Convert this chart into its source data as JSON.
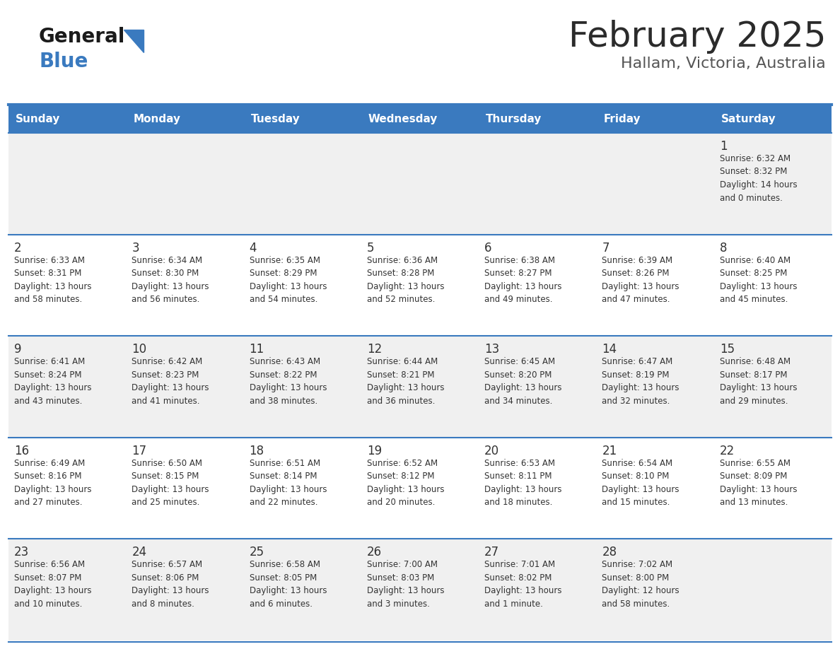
{
  "title": "February 2025",
  "subtitle": "Hallam, Victoria, Australia",
  "header_bg": "#3a7abf",
  "header_text": "#ffffff",
  "row_bg_odd": "#f0f0f0",
  "row_bg_even": "#ffffff",
  "cell_text": "#333333",
  "day_number_color": "#333333",
  "separator_color": "#3a7abf",
  "days_of_week": [
    "Sunday",
    "Monday",
    "Tuesday",
    "Wednesday",
    "Thursday",
    "Friday",
    "Saturday"
  ],
  "logo_general_color": "#1a1a1a",
  "logo_blue_color": "#3a7abf",
  "logo_triangle_color": "#3a7abf",
  "weeks": [
    [
      {
        "day": null,
        "info": null
      },
      {
        "day": null,
        "info": null
      },
      {
        "day": null,
        "info": null
      },
      {
        "day": null,
        "info": null
      },
      {
        "day": null,
        "info": null
      },
      {
        "day": null,
        "info": null
      },
      {
        "day": 1,
        "info": "Sunrise: 6:32 AM\nSunset: 8:32 PM\nDaylight: 14 hours\nand 0 minutes."
      }
    ],
    [
      {
        "day": 2,
        "info": "Sunrise: 6:33 AM\nSunset: 8:31 PM\nDaylight: 13 hours\nand 58 minutes."
      },
      {
        "day": 3,
        "info": "Sunrise: 6:34 AM\nSunset: 8:30 PM\nDaylight: 13 hours\nand 56 minutes."
      },
      {
        "day": 4,
        "info": "Sunrise: 6:35 AM\nSunset: 8:29 PM\nDaylight: 13 hours\nand 54 minutes."
      },
      {
        "day": 5,
        "info": "Sunrise: 6:36 AM\nSunset: 8:28 PM\nDaylight: 13 hours\nand 52 minutes."
      },
      {
        "day": 6,
        "info": "Sunrise: 6:38 AM\nSunset: 8:27 PM\nDaylight: 13 hours\nand 49 minutes."
      },
      {
        "day": 7,
        "info": "Sunrise: 6:39 AM\nSunset: 8:26 PM\nDaylight: 13 hours\nand 47 minutes."
      },
      {
        "day": 8,
        "info": "Sunrise: 6:40 AM\nSunset: 8:25 PM\nDaylight: 13 hours\nand 45 minutes."
      }
    ],
    [
      {
        "day": 9,
        "info": "Sunrise: 6:41 AM\nSunset: 8:24 PM\nDaylight: 13 hours\nand 43 minutes."
      },
      {
        "day": 10,
        "info": "Sunrise: 6:42 AM\nSunset: 8:23 PM\nDaylight: 13 hours\nand 41 minutes."
      },
      {
        "day": 11,
        "info": "Sunrise: 6:43 AM\nSunset: 8:22 PM\nDaylight: 13 hours\nand 38 minutes."
      },
      {
        "day": 12,
        "info": "Sunrise: 6:44 AM\nSunset: 8:21 PM\nDaylight: 13 hours\nand 36 minutes."
      },
      {
        "day": 13,
        "info": "Sunrise: 6:45 AM\nSunset: 8:20 PM\nDaylight: 13 hours\nand 34 minutes."
      },
      {
        "day": 14,
        "info": "Sunrise: 6:47 AM\nSunset: 8:19 PM\nDaylight: 13 hours\nand 32 minutes."
      },
      {
        "day": 15,
        "info": "Sunrise: 6:48 AM\nSunset: 8:17 PM\nDaylight: 13 hours\nand 29 minutes."
      }
    ],
    [
      {
        "day": 16,
        "info": "Sunrise: 6:49 AM\nSunset: 8:16 PM\nDaylight: 13 hours\nand 27 minutes."
      },
      {
        "day": 17,
        "info": "Sunrise: 6:50 AM\nSunset: 8:15 PM\nDaylight: 13 hours\nand 25 minutes."
      },
      {
        "day": 18,
        "info": "Sunrise: 6:51 AM\nSunset: 8:14 PM\nDaylight: 13 hours\nand 22 minutes."
      },
      {
        "day": 19,
        "info": "Sunrise: 6:52 AM\nSunset: 8:12 PM\nDaylight: 13 hours\nand 20 minutes."
      },
      {
        "day": 20,
        "info": "Sunrise: 6:53 AM\nSunset: 8:11 PM\nDaylight: 13 hours\nand 18 minutes."
      },
      {
        "day": 21,
        "info": "Sunrise: 6:54 AM\nSunset: 8:10 PM\nDaylight: 13 hours\nand 15 minutes."
      },
      {
        "day": 22,
        "info": "Sunrise: 6:55 AM\nSunset: 8:09 PM\nDaylight: 13 hours\nand 13 minutes."
      }
    ],
    [
      {
        "day": 23,
        "info": "Sunrise: 6:56 AM\nSunset: 8:07 PM\nDaylight: 13 hours\nand 10 minutes."
      },
      {
        "day": 24,
        "info": "Sunrise: 6:57 AM\nSunset: 8:06 PM\nDaylight: 13 hours\nand 8 minutes."
      },
      {
        "day": 25,
        "info": "Sunrise: 6:58 AM\nSunset: 8:05 PM\nDaylight: 13 hours\nand 6 minutes."
      },
      {
        "day": 26,
        "info": "Sunrise: 7:00 AM\nSunset: 8:03 PM\nDaylight: 13 hours\nand 3 minutes."
      },
      {
        "day": 27,
        "info": "Sunrise: 7:01 AM\nSunset: 8:02 PM\nDaylight: 13 hours\nand 1 minute."
      },
      {
        "day": 28,
        "info": "Sunrise: 7:02 AM\nSunset: 8:00 PM\nDaylight: 12 hours\nand 58 minutes."
      },
      {
        "day": null,
        "info": null
      }
    ]
  ]
}
